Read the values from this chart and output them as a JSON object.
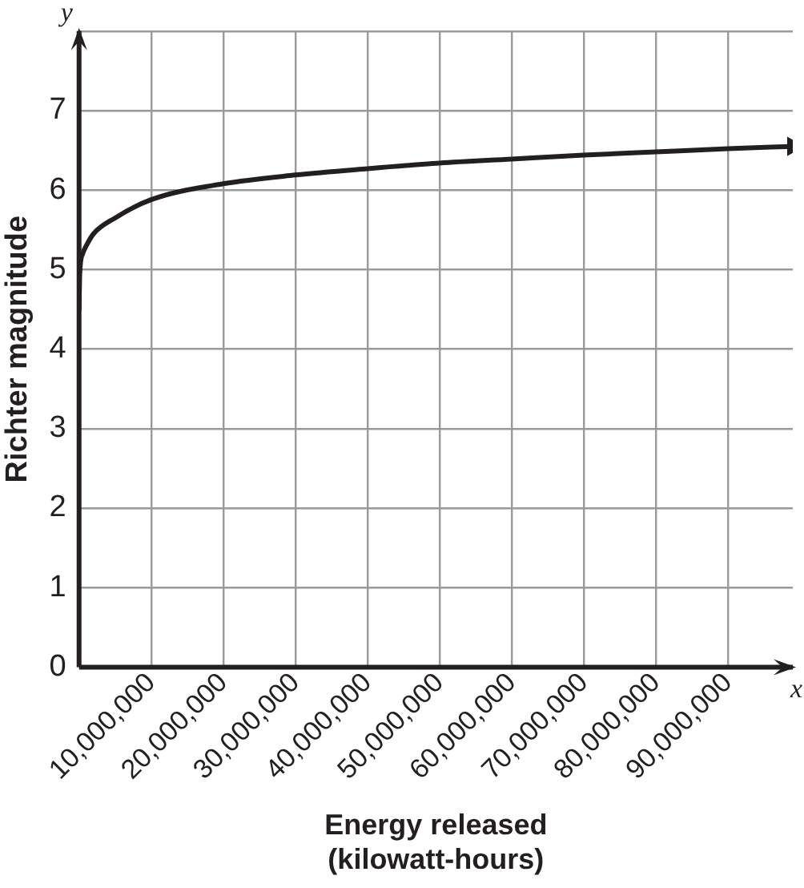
{
  "chart_data": {
    "type": "line",
    "xlabel": "Energy released (kilowatt-hours)",
    "ylabel": "Richter magnitude",
    "annotations": [
      "x",
      "y"
    ],
    "x": [
      0,
      100000,
      500000,
      1000000,
      2000000,
      5000000,
      10000000,
      20000000,
      30000000,
      40000000,
      50000000,
      60000000,
      70000000,
      80000000,
      90000000,
      99000000
    ],
    "series": [
      {
        "color": "#231f20",
        "values": [
          4.5,
          4.95,
          5.2,
          5.3,
          5.45,
          5.65,
          5.88,
          6.08,
          6.19,
          6.27,
          6.34,
          6.39,
          6.44,
          6.48,
          6.52,
          6.55
        ]
      }
    ],
    "xlim": [
      0,
      99000000
    ],
    "ylim": [
      0,
      8
    ],
    "xticks": [
      {
        "value": 0,
        "label": null
      },
      {
        "value": 10000000,
        "label": "10,000,000"
      },
      {
        "value": 20000000,
        "label": "20,000,000"
      },
      {
        "value": 30000000,
        "label": "30,000,000"
      },
      {
        "value": 40000000,
        "label": "40,000,000"
      },
      {
        "value": 50000000,
        "label": "50,000,000"
      },
      {
        "value": 60000000,
        "label": "60,000,000"
      },
      {
        "value": 70000000,
        "label": "70,000,000"
      },
      {
        "value": 80000000,
        "label": "80,000,000"
      },
      {
        "value": 90000000,
        "label": "90,000,000"
      }
    ],
    "yticks": [
      0,
      1,
      2,
      3,
      4,
      5,
      6,
      7,
      {
        "value": 8,
        "label": null
      }
    ],
    "grid": true,
    "legend": false,
    "marker": "none",
    "line_style": "solid"
  }
}
